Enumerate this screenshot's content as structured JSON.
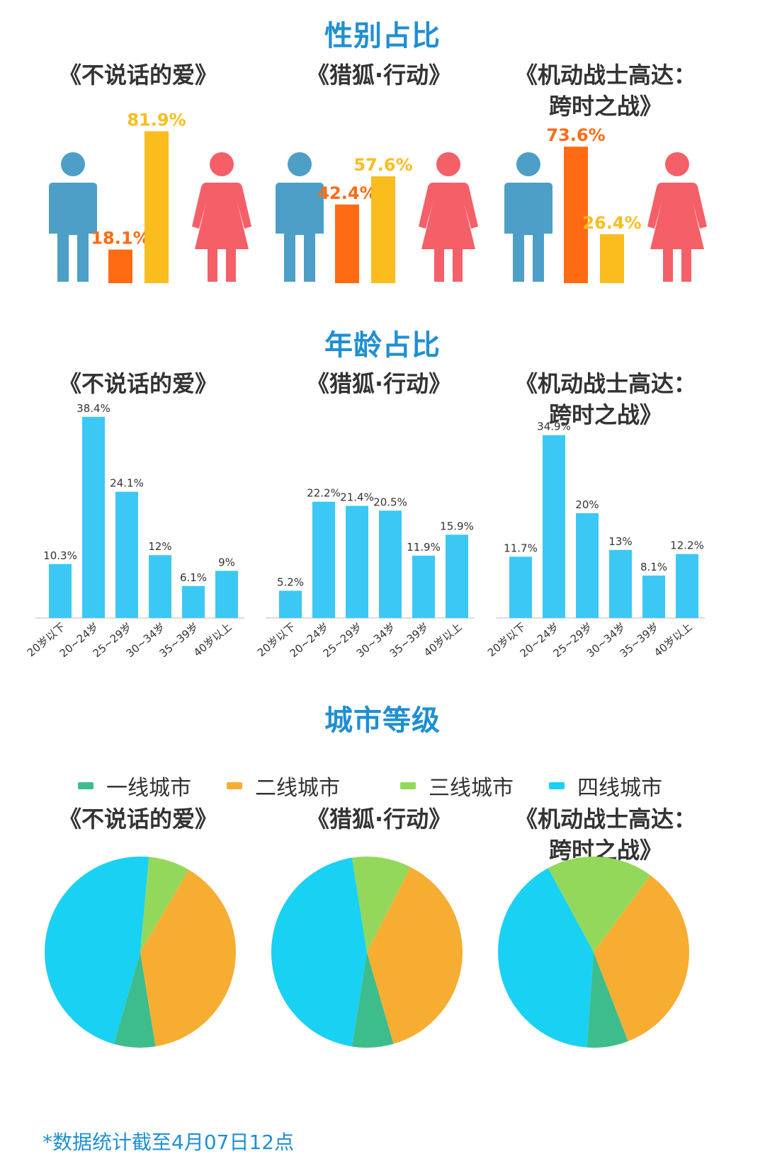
{
  "sections": {
    "gender": "性别占比",
    "age": "年龄占比",
    "city": "城市等级"
  },
  "movies": [
    {
      "title_line1": "《不说话的爱》",
      "title_line2": ""
    },
    {
      "title_line1": "《猎狐·行动》",
      "title_line2": ""
    },
    {
      "title_line1": "《机动战士高达：",
      "title_line2": "跨时之战》"
    }
  ],
  "legend": [
    {
      "label": "一线城市",
      "color": "#3dbd8c"
    },
    {
      "label": "二线城市",
      "color": "#f7ad32"
    },
    {
      "label": "三线城市",
      "color": "#93d85a"
    },
    {
      "label": "四线城市",
      "color": "#19d1f3"
    }
  ],
  "colors": {
    "title": "#1f8fd3",
    "male_icon": "#4d9fc8",
    "female_icon": "#f55f68",
    "male_bar": "#ff6b13",
    "female_bar": "#fbbd1e",
    "age_bar": "#3cc8f5"
  },
  "footnote": "*数据统计截至4月07日12点",
  "chart_data": [
    {
      "type": "bar",
      "chart": "gender",
      "movie_index": 0,
      "categories": [
        "男",
        "女"
      ],
      "values": [
        18.1,
        81.9
      ],
      "labels": [
        "18.1%",
        "81.9%"
      ]
    },
    {
      "type": "bar",
      "chart": "gender",
      "movie_index": 1,
      "categories": [
        "男",
        "女"
      ],
      "values": [
        42.4,
        57.6
      ],
      "labels": [
        "42.4%",
        "57.6%"
      ]
    },
    {
      "type": "bar",
      "chart": "gender",
      "movie_index": 2,
      "categories": [
        "男",
        "女"
      ],
      "values": [
        73.6,
        26.4
      ],
      "labels": [
        "73.6%",
        "26.4%"
      ]
    },
    {
      "type": "bar",
      "chart": "age",
      "movie_index": 0,
      "categories": [
        "20岁以下",
        "20~24岁",
        "25~29岁",
        "30~34岁",
        "35~39岁",
        "40岁以上"
      ],
      "values": [
        10.3,
        38.4,
        24.1,
        12,
        6.1,
        9
      ],
      "labels": [
        "10.3%",
        "38.4%",
        "24.1%",
        "12%",
        "6.1%",
        "9%"
      ]
    },
    {
      "type": "bar",
      "chart": "age",
      "movie_index": 1,
      "categories": [
        "20岁以下",
        "20~24岁",
        "25~29岁",
        "30~34岁",
        "35~39岁",
        "40岁以上"
      ],
      "values": [
        5.2,
        22.2,
        21.4,
        20.5,
        11.9,
        15.9
      ],
      "labels": [
        "5.2%",
        "22.2%",
        "21.4%",
        "20.5%",
        "11.9%",
        "15.9%"
      ]
    },
    {
      "type": "bar",
      "chart": "age",
      "movie_index": 2,
      "categories": [
        "20岁以下",
        "20~24岁",
        "25~29岁",
        "30~34岁",
        "35~39岁",
        "40岁以上"
      ],
      "values": [
        11.7,
        34.9,
        20,
        13,
        8.1,
        12.2
      ],
      "labels": [
        "11.7%",
        "34.9%",
        "20%",
        "13%",
        "8.1%",
        "12.2%"
      ]
    },
    {
      "type": "pie",
      "chart": "city",
      "movie_index": 0,
      "categories": [
        "一线城市",
        "二线城市",
        "三线城市",
        "四线城市"
      ],
      "values": [
        7,
        39,
        7,
        47
      ]
    },
    {
      "type": "pie",
      "chart": "city",
      "movie_index": 1,
      "categories": [
        "一线城市",
        "二线城市",
        "三线城市",
        "四线城市"
      ],
      "values": [
        7,
        38,
        10,
        45
      ]
    },
    {
      "type": "pie",
      "chart": "city",
      "movie_index": 2,
      "categories": [
        "一线城市",
        "二线城市",
        "三线城市",
        "四线城市"
      ],
      "values": [
        7,
        34,
        18,
        41
      ]
    }
  ]
}
